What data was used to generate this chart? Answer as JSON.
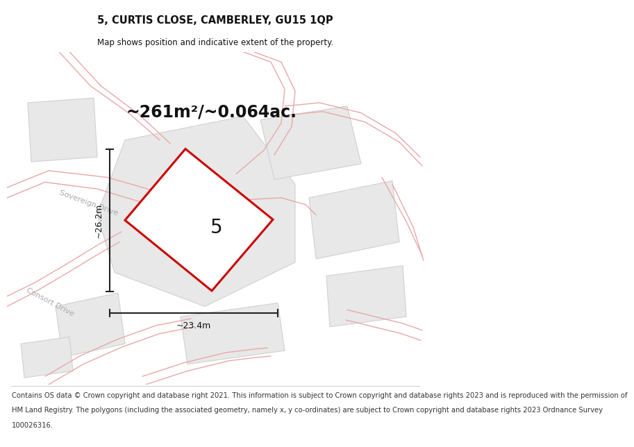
{
  "title": "5, CURTIS CLOSE, CAMBERLEY, GU15 1QP",
  "subtitle": "Map shows position and indicative extent of the property.",
  "area_text": "~261m²/~0.064ac.",
  "number_label": "5",
  "width_label": "~23.4m",
  "height_label": "~26.2m",
  "footer_lines": [
    "Contains OS data © Crown copyright and database right 2021. This information is subject to Crown copyright and database rights 2023 and is reproduced with the permission of",
    "HM Land Registry. The polygons (including the associated geometry, namely x, y co-ordinates) are subject to Crown copyright and database rights 2023 Ordnance Survey",
    "100026316."
  ],
  "map_bg": "#f7f7f7",
  "plot_fill": "#e8e8e8",
  "road_color": "#e8a8a8",
  "road_lw": 1.0,
  "parcel_edge": "#d0d0d0",
  "plot_border": "#cc0000",
  "dim_color": "#222222",
  "text_color": "#111111",
  "road_label_color": "#aaaaaa",
  "title_fontsize": 10.5,
  "subtitle_fontsize": 8.5,
  "area_fontsize": 17,
  "number_fontsize": 20,
  "dim_fontsize": 9,
  "footer_fontsize": 7.2,
  "road_label_fontsize": 8
}
